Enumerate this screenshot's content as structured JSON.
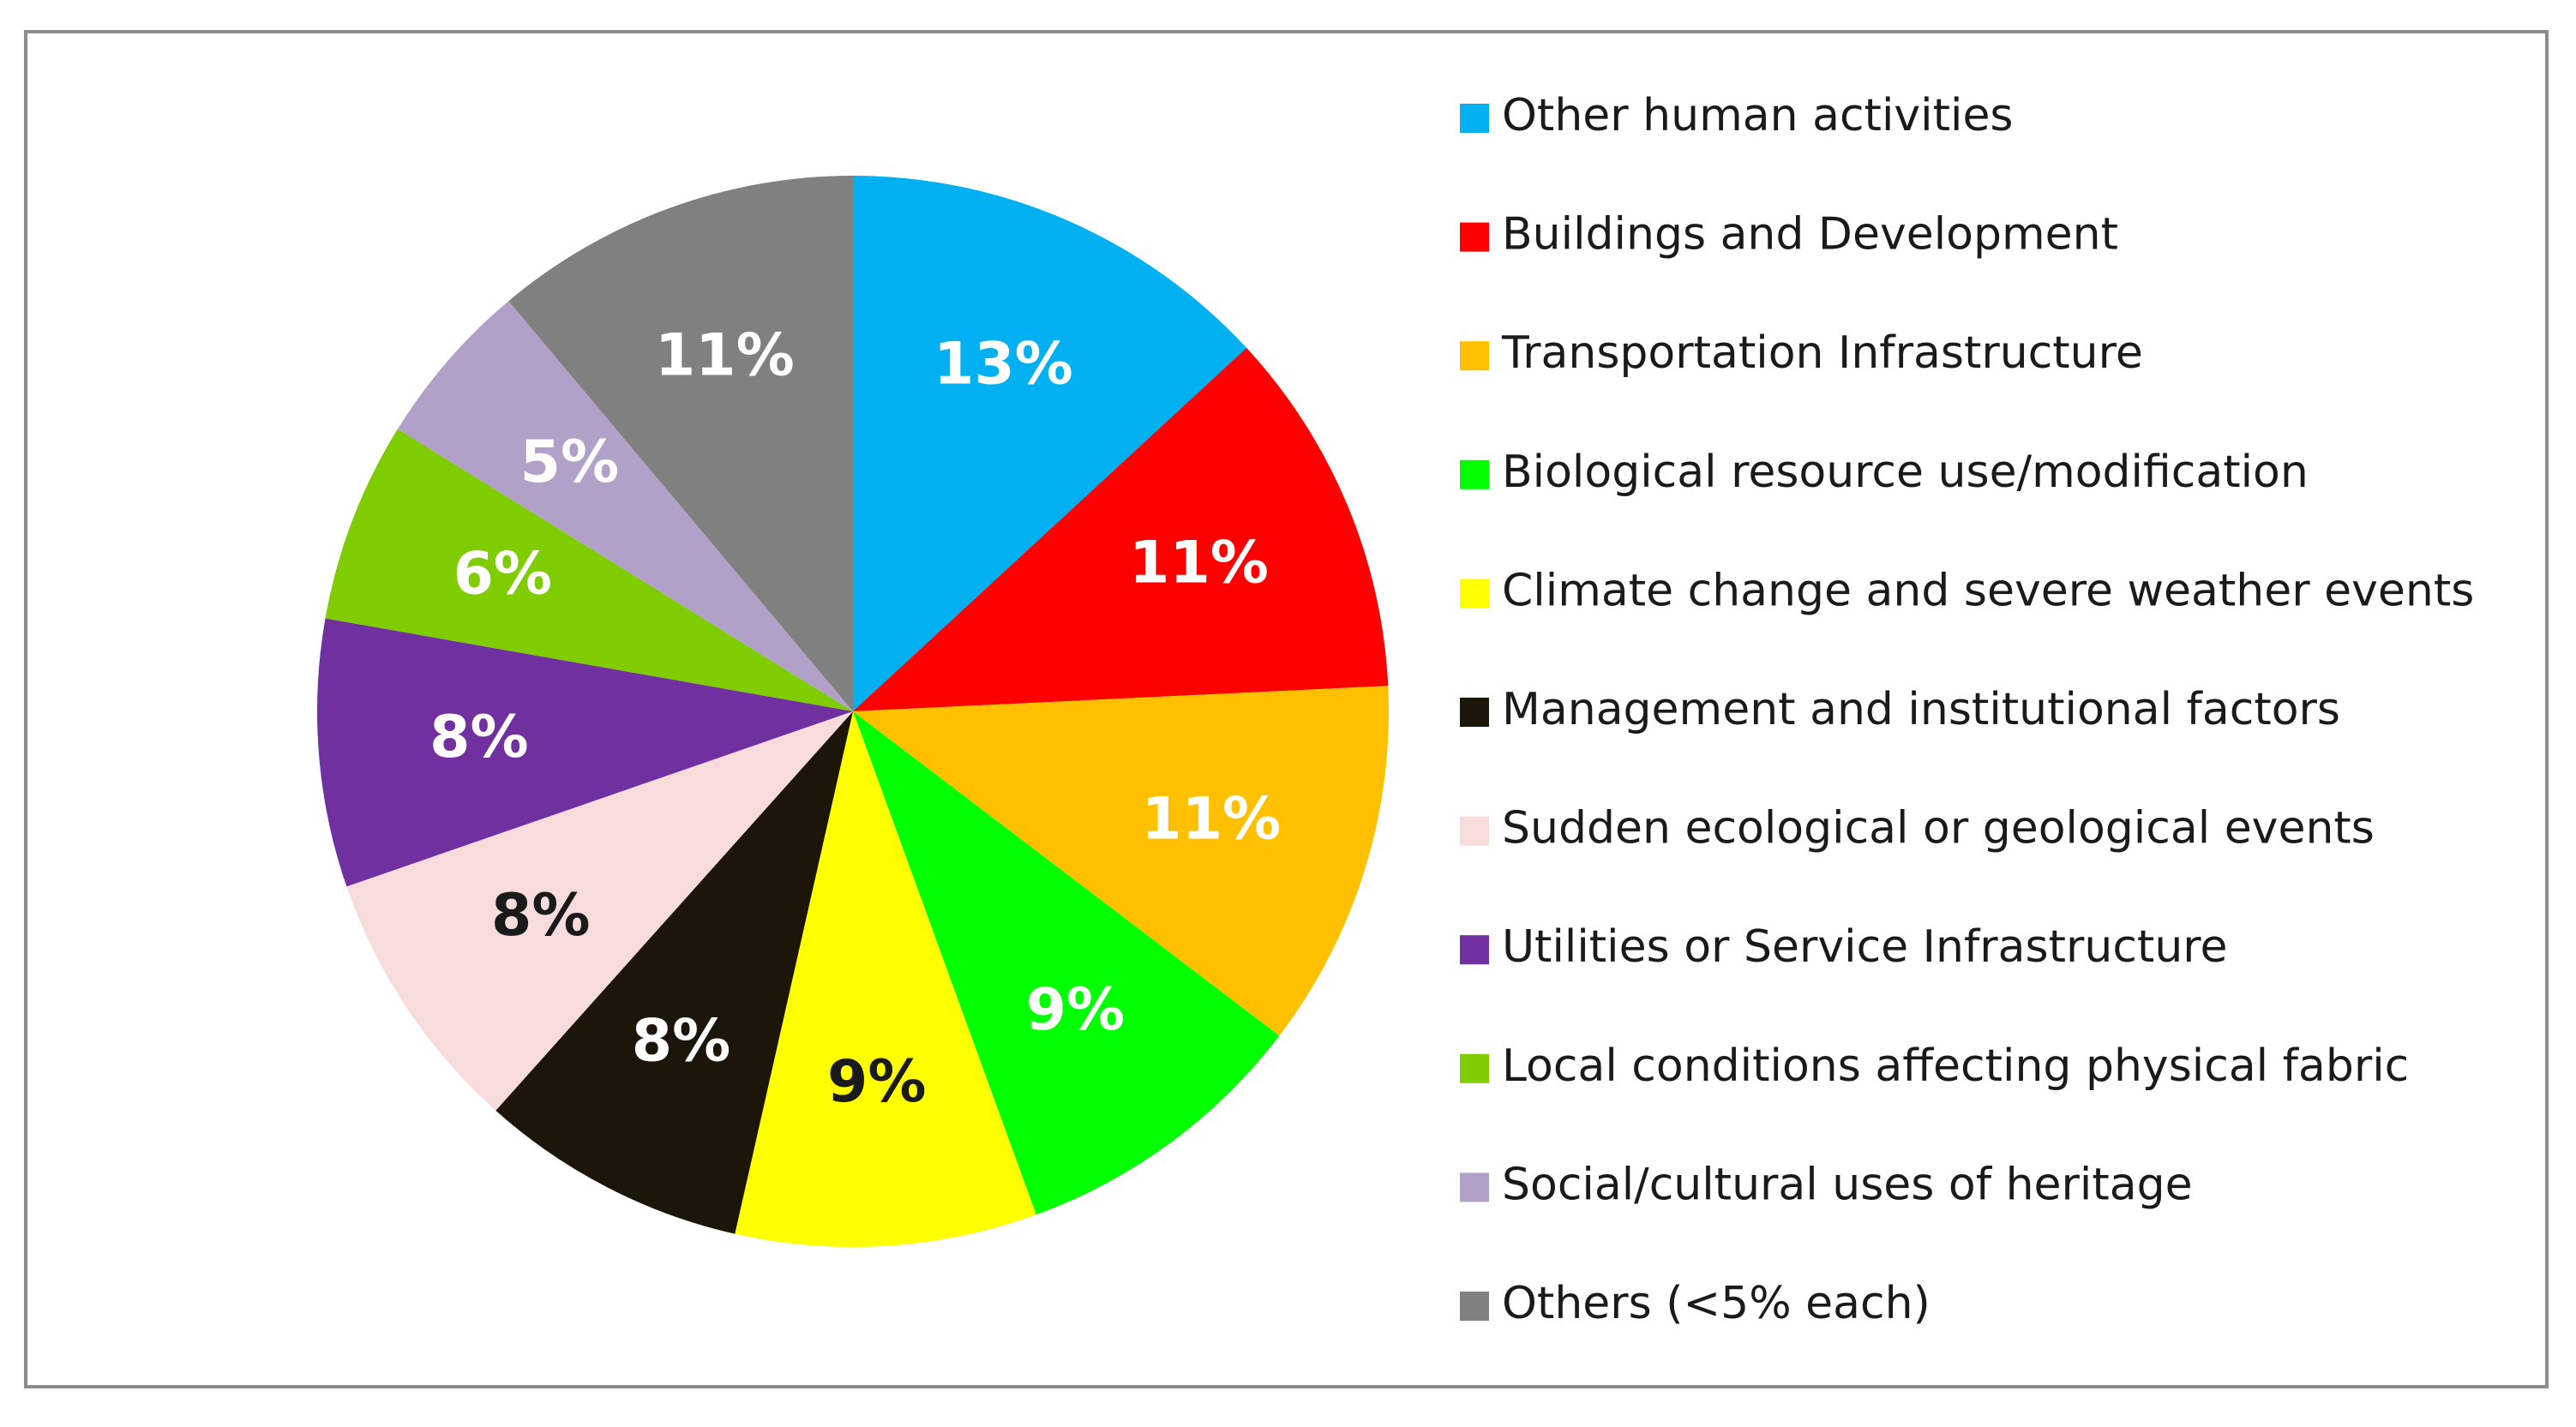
{
  "chart_data": {
    "type": "pie",
    "title": "",
    "legend_position": "right",
    "start_angle": "12 o'clock, clockwise",
    "slices": [
      {
        "label": "Other human activities",
        "value": 13,
        "display": "13%",
        "color": "#00b0f0",
        "label_color": "#ffffff"
      },
      {
        "label": "Buildings and Development",
        "value": 11,
        "display": "11%",
        "color": "#ff0000",
        "label_color": "#ffffff"
      },
      {
        "label": "Transportation Infrastructure",
        "value": 11,
        "display": "11%",
        "color": "#ffc000",
        "label_color": "#ffffff"
      },
      {
        "label": "Biological resource use/modification",
        "value": 9,
        "display": "9%",
        "color": "#00ff00",
        "label_color": "#ffffff"
      },
      {
        "label": "Climate change and severe weather events",
        "value": 9,
        "display": "9%",
        "color": "#ffff00",
        "label_color": "#1a1a1a"
      },
      {
        "label": "Management and institutional factors",
        "value": 8,
        "display": "8%",
        "color": "#1c1609",
        "label_color": "#ffffff"
      },
      {
        "label": "Sudden ecological or geological events",
        "value": 8,
        "display": "8%",
        "color": "#f8dcdc",
        "label_color": "#1a1a1a"
      },
      {
        "label": "Utilities or Service Infrastructure",
        "value": 8,
        "display": "8%",
        "color": "#7030a0",
        "label_color": "#ffffff"
      },
      {
        "label": "Local conditions affecting physical fabric",
        "value": 6,
        "display": "6%",
        "color": "#7fcc00",
        "label_color": "#ffffff"
      },
      {
        "label": "Social/cultural uses of heritage",
        "value": 5,
        "display": "5%",
        "color": "#b1a0c7",
        "label_color": "#ffffff"
      },
      {
        "label": "Others (<5% each)",
        "value": 11,
        "display": "11%",
        "color": "#808080",
        "label_color": "#ffffff"
      }
    ]
  }
}
